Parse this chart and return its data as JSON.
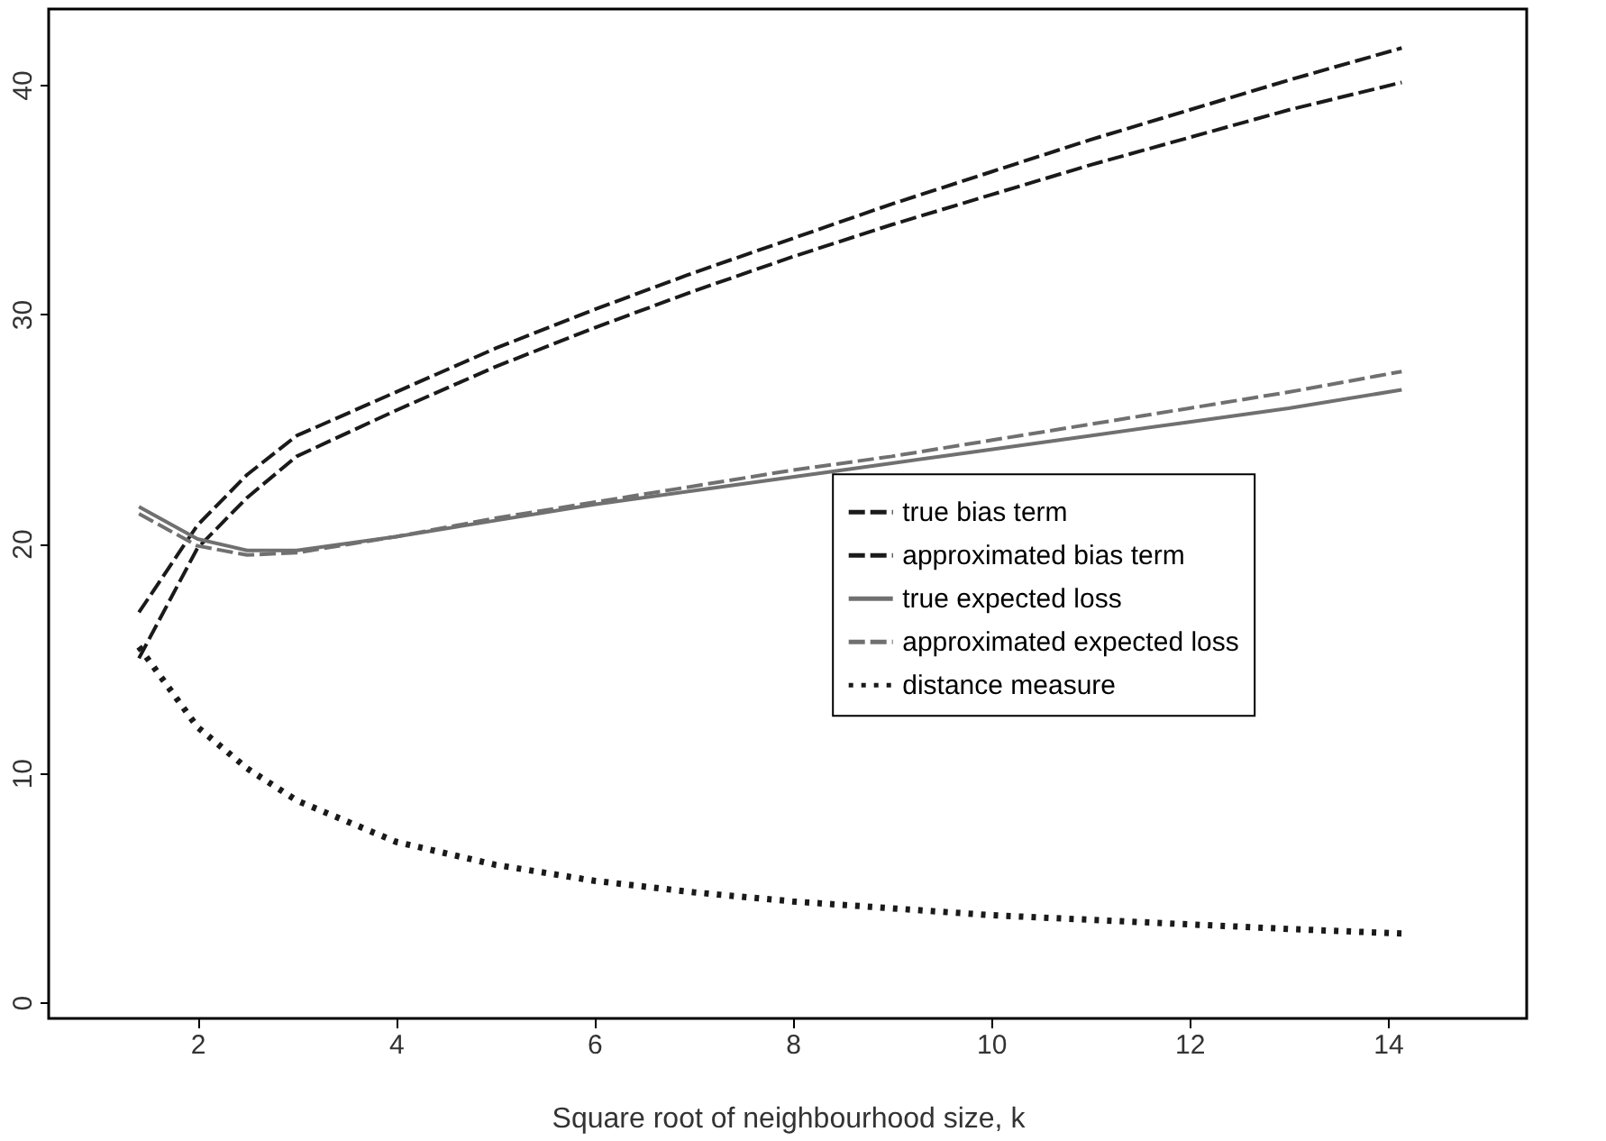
{
  "chart_data": {
    "type": "line",
    "xlabel": "Square root of neighbourhood size, k",
    "x": [
      1.41,
      2,
      2.5,
      3,
      4,
      5,
      6,
      7,
      8,
      9,
      10,
      11,
      12,
      13,
      14.14
    ],
    "series": [
      {
        "name": "true bias term",
        "color": "#1a1a1a",
        "line_style": "dashed",
        "values": [
          15,
          19.8,
          22,
          23.8,
          25.8,
          27.7,
          29.4,
          31,
          32.5,
          33.9,
          35.2,
          36.5,
          37.7,
          38.9,
          40.1
        ]
      },
      {
        "name": "approximated bias term",
        "color": "#1a1a1a",
        "line_style": "dashed",
        "values": [
          17,
          20.8,
          23,
          24.7,
          26.6,
          28.5,
          30.2,
          31.8,
          33.3,
          34.8,
          36.2,
          37.6,
          38.9,
          40.2,
          41.6
        ]
      },
      {
        "name": "true expected loss",
        "color": "#707070",
        "line_style": "solid",
        "values": [
          21.6,
          20.2,
          19.7,
          19.7,
          20.3,
          21,
          21.7,
          22.3,
          22.9,
          23.5,
          24.1,
          24.7,
          25.3,
          25.9,
          26.7
        ]
      },
      {
        "name": "approximated expected loss",
        "color": "#707070",
        "line_style": "dashed",
        "values": [
          21.3,
          19.9,
          19.5,
          19.6,
          20.3,
          21.1,
          21.8,
          22.5,
          23.2,
          23.8,
          24.5,
          25.2,
          25.9,
          26.6,
          27.5
        ]
      },
      {
        "name": "distance measure",
        "color": "#1a1a1a",
        "line_style": "dotted",
        "values": [
          15.5,
          12,
          10.2,
          8.8,
          7,
          6,
          5.3,
          4.8,
          4.4,
          4.1,
          3.8,
          3.6,
          3.4,
          3.2,
          3.0
        ]
      }
    ],
    "xlim": [
      0.5,
      15.4
    ],
    "ylim": [
      -0.7,
      43.3
    ],
    "xticks": [
      2,
      4,
      6,
      8,
      10,
      12,
      14
    ],
    "yticks": [
      0,
      10,
      20,
      30,
      40
    ],
    "grid": false,
    "legend": "right",
    "marker": "none"
  }
}
